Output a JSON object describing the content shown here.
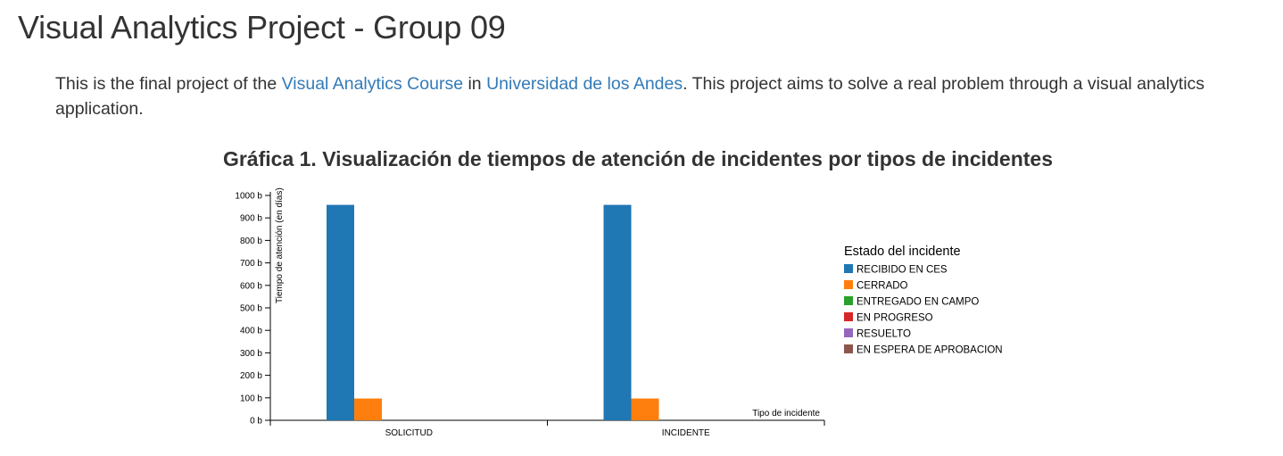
{
  "header": {
    "title": "Visual Analytics Project - Group 09"
  },
  "intro": {
    "text_before": "This is the final project of the ",
    "link1": "Visual Analytics Course",
    "text_mid": " in ",
    "link2": "Universidad de los Andes",
    "text_after": ". This project aims to solve a real problem through a visual analytics application."
  },
  "chart_data": {
    "type": "bar",
    "title": "Gráfica 1. Visualización de tiempos de atención de incidentes por tipos de incidentes",
    "xlabel": "Tipo de incidente",
    "ylabel": "Tiempo de atención (en días)",
    "ylim": [
      0,
      1000
    ],
    "y_ticks": [
      "0 b",
      "100 b",
      "200 b",
      "300 b",
      "400 b",
      "500 b",
      "600 b",
      "700 b",
      "800 b",
      "900 b",
      "1000 b"
    ],
    "categories": [
      "SOLICITUD",
      "INCIDENTE"
    ],
    "legend_title": "Estado del incidente",
    "legend_position": "right",
    "grid": false,
    "series": [
      {
        "name": "RECIBIDO EN CES",
        "color": "#1f77b4",
        "values": [
          958,
          958
        ]
      },
      {
        "name": "CERRADO",
        "color": "#ff7f0e",
        "values": [
          97,
          97
        ]
      },
      {
        "name": "ENTREGADO EN CAMPO",
        "color": "#2ca02c",
        "values": [
          0,
          0
        ]
      },
      {
        "name": "EN PROGRESO",
        "color": "#d62728",
        "values": [
          0,
          0
        ]
      },
      {
        "name": "RESUELTO",
        "color": "#9467bd",
        "values": [
          0,
          0
        ]
      },
      {
        "name": "EN ESPERA DE APROBACION",
        "color": "#8c564b",
        "values": [
          0,
          0
        ]
      }
    ]
  }
}
